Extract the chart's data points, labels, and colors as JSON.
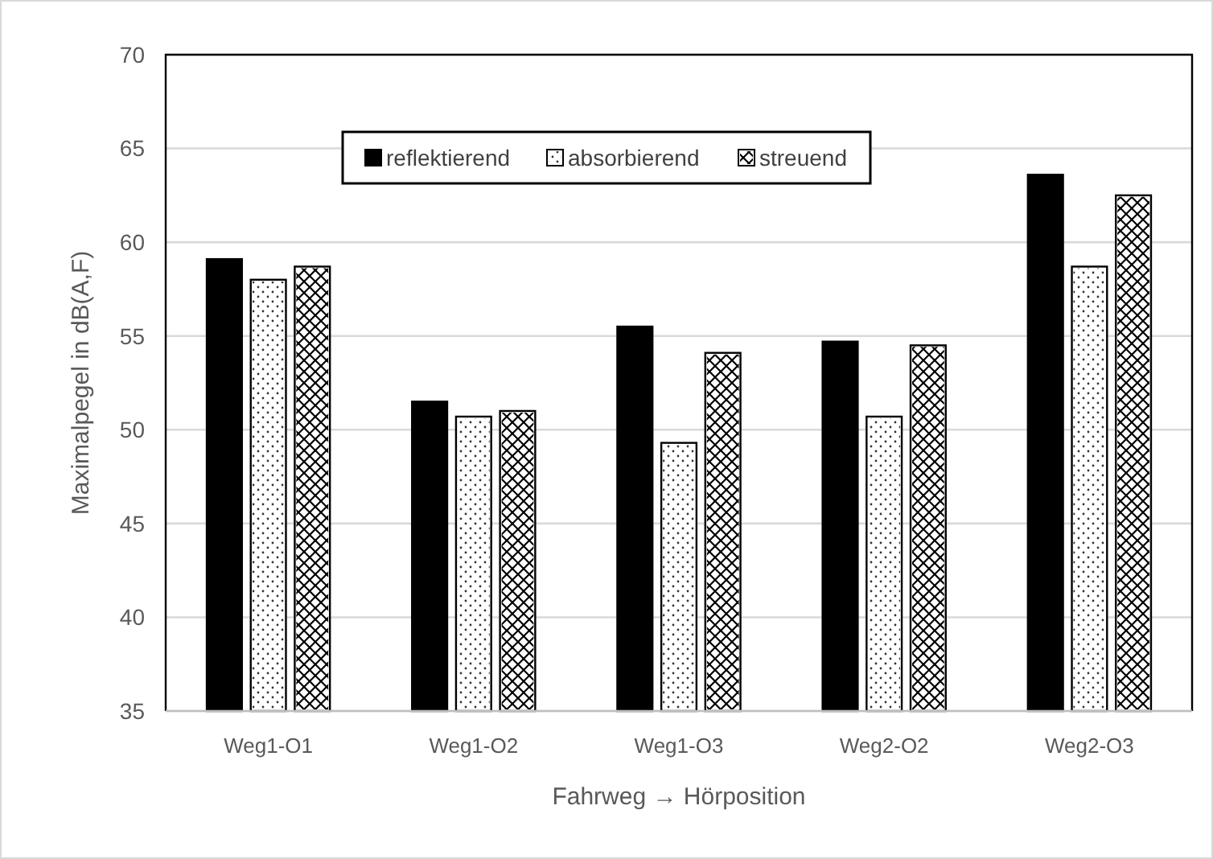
{
  "chart_data": {
    "type": "bar",
    "xlabel": "Fahrweg → Hörposition",
    "ylabel": "Maximalpegel in dB(A,F)",
    "categories": [
      "Weg1-O1",
      "Weg1-O2",
      "Weg1-O3",
      "Weg2-O2",
      "Weg2-O3"
    ],
    "series": [
      {
        "name": "reflektierend",
        "color": "#000000",
        "values": [
          59.1,
          51.5,
          55.5,
          54.7,
          63.6
        ]
      },
      {
        "name": "absorbierend",
        "color": "#ffffff",
        "values": [
          58.0,
          50.7,
          49.3,
          50.7,
          58.7
        ]
      },
      {
        "name": "streuend",
        "color": "#ffffff",
        "values": [
          58.7,
          51.0,
          54.1,
          54.5,
          62.5
        ]
      }
    ],
    "ylim": [
      35,
      70
    ],
    "yticks": [
      35,
      40,
      45,
      50,
      55,
      60,
      65,
      70
    ],
    "grid": "y",
    "legend": "top"
  }
}
